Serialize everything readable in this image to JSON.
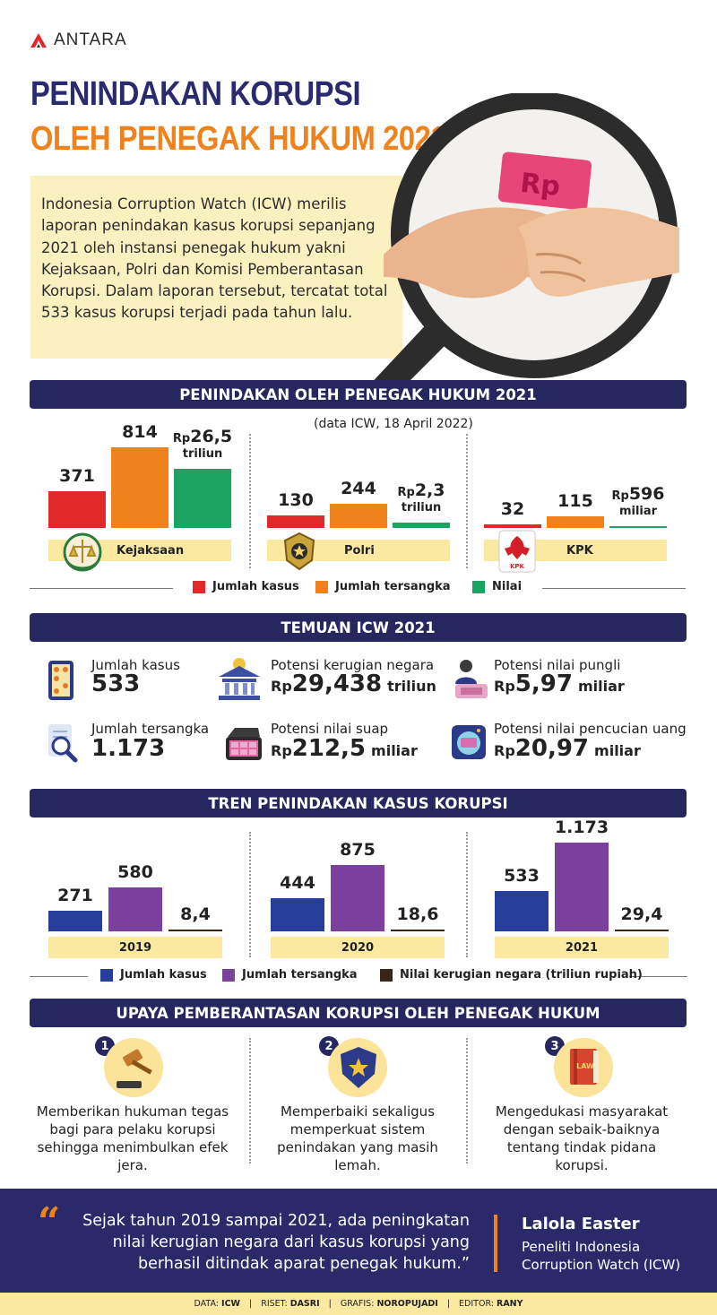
{
  "brand": {
    "name": "ANTARA"
  },
  "title": {
    "line1": "PENINDAKAN KORUPSI",
    "line2": "OLEH PENEGAK HUKUM 2021"
  },
  "intro": "Indonesia Corruption Watch (ICW) merilis laporan penindakan kasus korupsi sepanjang 2021 oleh instansi penegak hukum yakni Kejaksaan, Polri dan Komisi Pemberantasan Korupsi. Dalam laporan tersebut, tercatat total 533 kasus korupsi terjadi pada tahun lalu.",
  "hero": {
    "bill_text": "Rp"
  },
  "section1": {
    "title": "PENINDAKAN OLEH PENEGAK HUKUM 2021",
    "note": "(data ICW, 18 April 2022)"
  },
  "section2": {
    "title": "TEMUAN ICW 2021"
  },
  "section3": {
    "title": "TREN PENINDAKAN KASUS KORUPSI"
  },
  "section4": {
    "title": "UPAYA PEMBERANTASAN KORUPSI OLEH PENEGAK HUKUM"
  },
  "chart_data": [
    {
      "type": "bar",
      "categories": [
        "Kejaksaan",
        "Polri",
        "KPK"
      ],
      "series": [
        {
          "name": "Jumlah kasus",
          "color": "#e02a2a",
          "values": [
            371,
            130,
            32
          ],
          "labels": [
            "371",
            "130",
            "32"
          ]
        },
        {
          "name": "Jumlah tersangka",
          "color": "#f0821e",
          "values": [
            814,
            244,
            115
          ],
          "labels": [
            "814",
            "244",
            "115"
          ]
        },
        {
          "name": "Nilai",
          "color": "#1fa363",
          "values": [
            26.5,
            2.3,
            0.596
          ],
          "labels": [
            {
              "rp": "Rp",
              "num": "26,5",
              "unit": "triliun"
            },
            {
              "rp": "Rp",
              "num": "2,3",
              "unit": "triliun"
            },
            {
              "rp": "Rp",
              "num": "596",
              "unit": "miliar"
            }
          ]
        }
      ]
    },
    {
      "type": "bar",
      "categories": [
        "2019",
        "2020",
        "2021"
      ],
      "series": [
        {
          "name": "Jumlah kasus",
          "color": "#283e9c",
          "values": [
            271,
            444,
            533
          ],
          "labels": [
            "271",
            "444",
            "533"
          ]
        },
        {
          "name": "Jumlah tersangka",
          "color": "#7b3f9e",
          "values": [
            580,
            875,
            1173
          ],
          "labels": [
            "580",
            "875",
            "1.173"
          ]
        },
        {
          "name": "Nilai kerugian negara (triliun rupiah)",
          "color": "#3a2418",
          "values": [
            8.4,
            18.6,
            29.4
          ],
          "labels": [
            "8,4",
            "18,6",
            "29,4"
          ]
        }
      ]
    }
  ],
  "temuan": [
    {
      "label": "Jumlah kasus",
      "rp": "",
      "value": "533",
      "unit": "",
      "icon": "abacus-icon"
    },
    {
      "label": "Potensi kerugian negara",
      "rp": "Rp",
      "value": "29,438",
      "unit": "triliun",
      "icon": "bank-icon"
    },
    {
      "label": "Potensi nilai pungli",
      "rp": "Rp",
      "value": "5,97",
      "unit": "miliar",
      "icon": "extortion-icon"
    },
    {
      "label": "Jumlah tersangka",
      "rp": "",
      "value": "1.173",
      "unit": "",
      "icon": "magnifier-document-icon"
    },
    {
      "label": "Potensi nilai suap",
      "rp": "Rp",
      "value": "212,5",
      "unit": "miliar",
      "icon": "money-briefcase-icon"
    },
    {
      "label": "Potensi nilai pencucian uang",
      "rp": "Rp",
      "value": "20,97",
      "unit": "miliar",
      "icon": "money-laundering-icon"
    }
  ],
  "upaya": [
    {
      "num": "1",
      "text": "Memberikan hukuman tegas bagi para pelaku korupsi sehingga menimbulkan efek jera.",
      "icon": "gavel-icon"
    },
    {
      "num": "2",
      "text": "Memperbaiki sekaligus memperkuat sistem penindakan yang masih lemah.",
      "icon": "police-badge-icon"
    },
    {
      "num": "3",
      "text": "Mengedukasi masyarakat dengan sebaik-baiknya tentang tindak pidana korupsi.",
      "icon": "law-book-icon",
      "book_label": "LAW"
    }
  ],
  "quote": {
    "text": "Sejak tahun 2019 sampai 2021, ada peningkatan nilai kerugian negara dari kasus korupsi yang berhasil ditindak aparat penegak hukum.”",
    "mark": "“",
    "name": "Lalola Easter",
    "role": "Peneliti Indonesia Corruption Watch (ICW)"
  },
  "credits": [
    {
      "k": "DATA:",
      "v": "ICW"
    },
    {
      "k": "RISET:",
      "v": "DASRI"
    },
    {
      "k": "GRAFIS:",
      "v": "NOROPUJADI"
    },
    {
      "k": "EDITOR:",
      "v": "RANY"
    }
  ],
  "credits_sep": "|",
  "colors": {
    "navy": "#27275f",
    "orange": "#f0821e",
    "cream": "#fbe9a2"
  }
}
